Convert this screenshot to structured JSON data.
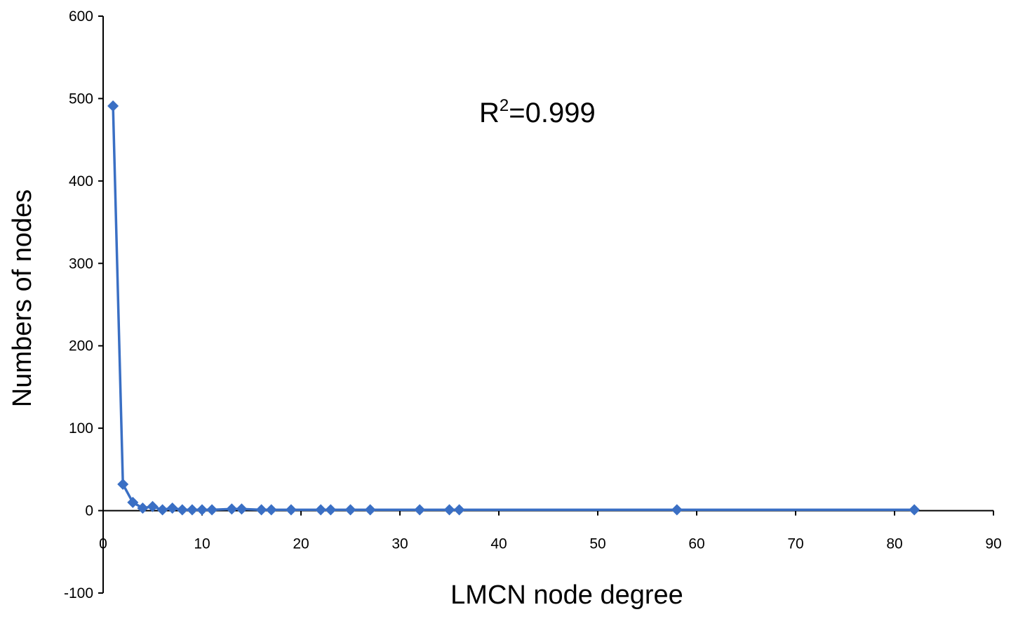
{
  "chart_data": {
    "type": "line",
    "title": "",
    "xlabel": "LMCN node degree",
    "ylabel": "Numbers of nodes",
    "xlim": [
      0,
      90
    ],
    "ylim": [
      -100,
      600
    ],
    "x_ticks": [
      0,
      10,
      20,
      30,
      40,
      50,
      60,
      70,
      80,
      90
    ],
    "y_ticks": [
      -100,
      0,
      100,
      200,
      300,
      400,
      500,
      600
    ],
    "grid": false,
    "legend": "none",
    "annotation": {
      "base": "R",
      "sup": "2",
      "rest": "=0.999"
    },
    "series": [
      {
        "color": "#3a6fc4",
        "marker": "diamond",
        "x": [
          1,
          2,
          3,
          4,
          5,
          6,
          7,
          8,
          9,
          10,
          11,
          13,
          14,
          16,
          17,
          19,
          22,
          23,
          25,
          27,
          32,
          35,
          36,
          58,
          82
        ],
        "y": [
          491,
          32,
          10,
          3,
          5,
          1,
          3,
          1,
          1,
          1,
          1,
          2,
          2,
          1,
          1,
          1,
          1,
          1,
          1,
          1,
          1,
          1,
          1,
          1,
          1
        ]
      }
    ]
  }
}
